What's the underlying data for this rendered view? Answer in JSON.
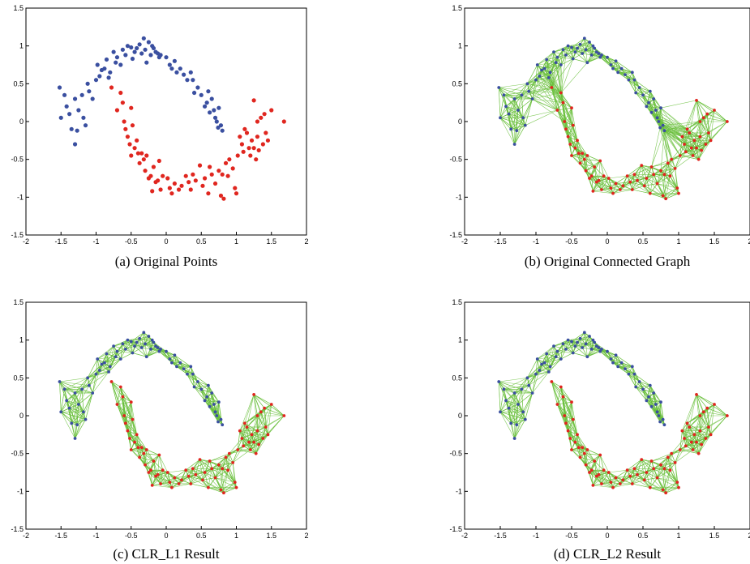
{
  "colors": {
    "class_a": "#3a4fa0",
    "class_b": "#e0261f",
    "edge": "#6abf3c",
    "axis": "#000000"
  },
  "chart_data": [
    {
      "type": "scatter",
      "caption": "(a) Original Points",
      "xlim": [
        -2,
        2
      ],
      "ylim": [
        -1.5,
        1.5
      ],
      "xticks": [
        "-2",
        "-1.5",
        "-1",
        "-0.5",
        "0",
        "0.5",
        "1",
        "1.5",
        "2"
      ],
      "yticks": [
        "1.5",
        "1",
        "0.5",
        "0",
        "-0.5",
        "-1",
        "-1.5"
      ],
      "edges": "none",
      "grid": false
    },
    {
      "type": "scatter",
      "caption": "(b) Original Connected Graph",
      "xlim": [
        -2,
        2
      ],
      "ylim": [
        -1.5,
        1.5
      ],
      "xticks": [
        "-2",
        "-1.5",
        "-1",
        "-0.5",
        "0",
        "0.5",
        "1",
        "1.5",
        "2"
      ],
      "yticks": [
        "1.5",
        "1",
        "0.5",
        "0",
        "-0.5",
        "-1",
        "-1.5"
      ],
      "edges": "all",
      "grid": false
    },
    {
      "type": "scatter",
      "caption": "(c) CLR_L1 Result",
      "xlim": [
        -2,
        2
      ],
      "ylim": [
        -1.5,
        1.5
      ],
      "xticks": [
        "-2",
        "-1.5",
        "-1",
        "-0.5",
        "0",
        "0.5",
        "1",
        "1.5",
        "2"
      ],
      "yticks": [
        "1.5",
        "1",
        "0.5",
        "0",
        "-0.5",
        "-1",
        "-1.5"
      ],
      "edges": "within-class",
      "grid": false
    },
    {
      "type": "scatter",
      "caption": "(d) CLR_L2 Result",
      "xlim": [
        -2,
        2
      ],
      "ylim": [
        -1.5,
        1.5
      ],
      "xticks": [
        "-2",
        "-1.5",
        "-1",
        "-0.5",
        "0",
        "0.5",
        "1",
        "1.5",
        "2"
      ],
      "yticks": [
        "1.5",
        "1",
        "0.5",
        "0",
        "-0.5",
        "-1",
        "-1.5"
      ],
      "edges": "within-class",
      "grid": false
    }
  ],
  "points": {
    "class_a": [
      [
        -1.52,
        0.45
      ],
      [
        -1.5,
        0.05
      ],
      [
        -1.45,
        0.35
      ],
      [
        -1.42,
        0.2
      ],
      [
        -1.38,
        0.1
      ],
      [
        -1.35,
        -0.1
      ],
      [
        -1.3,
        -0.3
      ],
      [
        -1.3,
        0.3
      ],
      [
        -1.27,
        -0.12
      ],
      [
        -1.25,
        0.15
      ],
      [
        -1.2,
        0.35
      ],
      [
        -1.18,
        0.05
      ],
      [
        -1.15,
        -0.05
      ],
      [
        -1.12,
        0.5
      ],
      [
        -1.1,
        0.4
      ],
      [
        -1.05,
        0.3
      ],
      [
        -1.0,
        0.55
      ],
      [
        -0.98,
        0.75
      ],
      [
        -0.95,
        0.6
      ],
      [
        -0.92,
        0.68
      ],
      [
        -0.88,
        0.7
      ],
      [
        -0.85,
        0.82
      ],
      [
        -0.82,
        0.58
      ],
      [
        -0.8,
        0.65
      ],
      [
        -0.75,
        0.92
      ],
      [
        -0.72,
        0.78
      ],
      [
        -0.7,
        0.85
      ],
      [
        -0.65,
        0.75
      ],
      [
        -0.62,
        0.95
      ],
      [
        -0.58,
        0.88
      ],
      [
        -0.55,
        1.0
      ],
      [
        -0.5,
        0.98
      ],
      [
        -0.48,
        0.83
      ],
      [
        -0.45,
        0.92
      ],
      [
        -0.42,
        0.97
      ],
      [
        -0.38,
        1.02
      ],
      [
        -0.35,
        0.9
      ],
      [
        -0.32,
        1.1
      ],
      [
        -0.3,
        0.95
      ],
      [
        -0.28,
        0.78
      ],
      [
        -0.25,
        1.05
      ],
      [
        -0.22,
        0.88
      ],
      [
        -0.2,
        1.0
      ],
      [
        -0.18,
        0.97
      ],
      [
        -0.15,
        0.92
      ],
      [
        -0.12,
        0.9
      ],
      [
        -0.1,
        0.85
      ],
      [
        -0.08,
        0.88
      ],
      [
        0.0,
        0.85
      ],
      [
        0.05,
        0.75
      ],
      [
        0.08,
        0.7
      ],
      [
        0.12,
        0.8
      ],
      [
        0.15,
        0.65
      ],
      [
        0.2,
        0.7
      ],
      [
        0.25,
        0.62
      ],
      [
        0.3,
        0.55
      ],
      [
        0.35,
        0.65
      ],
      [
        0.38,
        0.55
      ],
      [
        0.4,
        0.38
      ],
      [
        0.45,
        0.45
      ],
      [
        0.5,
        0.35
      ],
      [
        0.55,
        0.2
      ],
      [
        0.58,
        0.25
      ],
      [
        0.6,
        0.4
      ],
      [
        0.62,
        0.12
      ],
      [
        0.65,
        0.3
      ],
      [
        0.68,
        0.15
      ],
      [
        0.7,
        0.05
      ],
      [
        0.72,
        0.0
      ],
      [
        0.74,
        -0.08
      ],
      [
        0.78,
        -0.05
      ],
      [
        0.8,
        -0.12
      ],
      [
        0.75,
        0.18
      ]
    ],
    "class_b": [
      [
        -0.78,
        0.45
      ],
      [
        -0.7,
        0.15
      ],
      [
        -0.65,
        0.38
      ],
      [
        -0.62,
        0.25
      ],
      [
        -0.6,
        0.0
      ],
      [
        -0.58,
        -0.1
      ],
      [
        -0.55,
        -0.2
      ],
      [
        -0.52,
        -0.3
      ],
      [
        -0.5,
        -0.45
      ],
      [
        -0.5,
        0.18
      ],
      [
        -0.48,
        -0.05
      ],
      [
        -0.45,
        -0.35
      ],
      [
        -0.42,
        -0.25
      ],
      [
        -0.4,
        -0.42
      ],
      [
        -0.38,
        -0.55
      ],
      [
        -0.35,
        -0.42
      ],
      [
        -0.32,
        -0.5
      ],
      [
        -0.3,
        -0.65
      ],
      [
        -0.28,
        -0.45
      ],
      [
        -0.25,
        -0.75
      ],
      [
        -0.22,
        -0.72
      ],
      [
        -0.2,
        -0.92
      ],
      [
        -0.18,
        -0.6
      ],
      [
        -0.15,
        -0.8
      ],
      [
        -0.12,
        -0.78
      ],
      [
        -0.1,
        -0.52
      ],
      [
        -0.08,
        -0.9
      ],
      [
        -0.05,
        -0.72
      ],
      [
        0.02,
        -0.75
      ],
      [
        0.05,
        -0.88
      ],
      [
        0.08,
        -0.95
      ],
      [
        0.12,
        -0.82
      ],
      [
        0.18,
        -0.9
      ],
      [
        0.22,
        -0.85
      ],
      [
        0.28,
        -0.72
      ],
      [
        0.32,
        -0.8
      ],
      [
        0.35,
        -0.9
      ],
      [
        0.38,
        -0.7
      ],
      [
        0.42,
        -0.78
      ],
      [
        0.48,
        -0.58
      ],
      [
        0.52,
        -0.85
      ],
      [
        0.55,
        -0.75
      ],
      [
        0.6,
        -0.95
      ],
      [
        0.62,
        -0.6
      ],
      [
        0.65,
        -0.7
      ],
      [
        0.7,
        -0.82
      ],
      [
        0.75,
        -0.65
      ],
      [
        0.78,
        -0.98
      ],
      [
        0.8,
        -0.7
      ],
      [
        0.82,
        -1.02
      ],
      [
        0.85,
        -0.55
      ],
      [
        0.88,
        -0.72
      ],
      [
        0.9,
        -0.5
      ],
      [
        0.95,
        -0.62
      ],
      [
        0.98,
        -0.88
      ],
      [
        1.0,
        -0.95
      ],
      [
        1.02,
        -0.45
      ],
      [
        1.05,
        -0.2
      ],
      [
        1.08,
        -0.3
      ],
      [
        1.1,
        -0.4
      ],
      [
        1.12,
        -0.1
      ],
      [
        1.15,
        -0.15
      ],
      [
        1.18,
        -0.35
      ],
      [
        1.2,
        -0.45
      ],
      [
        1.22,
        -0.25
      ],
      [
        1.25,
        -0.35
      ],
      [
        1.28,
        -0.5
      ],
      [
        1.3,
        -0.2
      ],
      [
        1.32,
        -0.38
      ],
      [
        1.35,
        0.05
      ],
      [
        1.38,
        -0.3
      ],
      [
        1.4,
        0.1
      ],
      [
        1.42,
        -0.15
      ],
      [
        1.45,
        -0.25
      ],
      [
        1.5,
        0.15
      ],
      [
        1.68,
        0.0
      ],
      [
        1.25,
        0.28
      ],
      [
        1.3,
        0.0
      ]
    ]
  }
}
